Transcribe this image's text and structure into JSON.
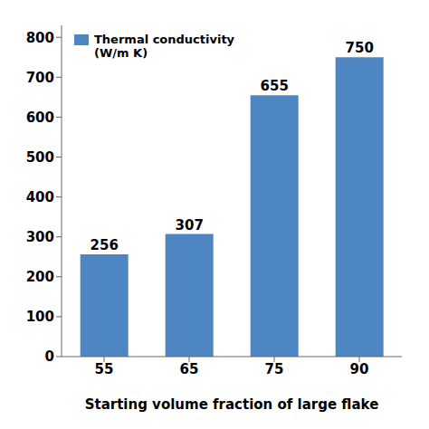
{
  "chart_data": {
    "type": "bar",
    "categories": [
      "55",
      "65",
      "75",
      "90"
    ],
    "series": [
      {
        "name": "Thermal conductivity\n(W/m K)",
        "color": "#4E86C4",
        "values": [
          256,
          307,
          655,
          750
        ]
      }
    ],
    "xlabel": "Starting volume fraction of large flake",
    "ylim": [
      0,
      830
    ],
    "yticks": [
      0,
      100,
      200,
      300,
      400,
      500,
      600,
      700,
      800
    ],
    "data_labels": true,
    "legend": "upper left",
    "grid": false
  }
}
